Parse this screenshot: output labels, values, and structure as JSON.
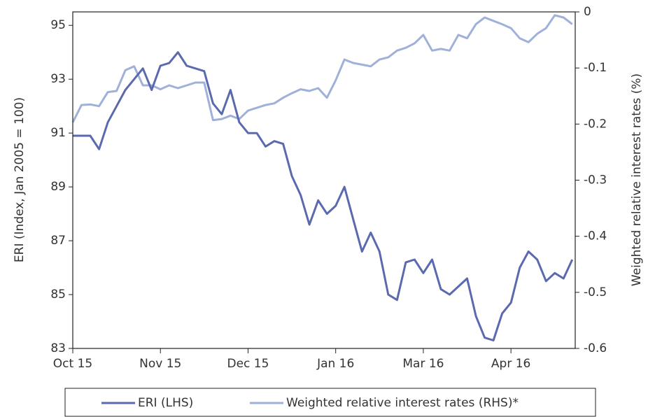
{
  "chart_data": {
    "type": "line",
    "x": [
      0,
      3,
      6,
      9,
      12,
      15,
      18,
      21,
      24,
      27,
      30,
      33,
      36,
      39,
      42,
      45,
      48,
      51,
      54,
      57,
      60,
      63,
      66,
      69,
      72,
      75,
      78,
      81,
      84,
      87,
      90,
      93,
      96,
      99,
      102,
      105,
      108,
      111,
      114,
      117,
      120,
      123,
      126,
      129,
      132,
      135,
      138,
      141,
      144,
      147,
      150,
      153,
      156,
      159,
      162,
      165,
      168,
      171
    ],
    "xlim": [
      0,
      172
    ],
    "xticks": [
      {
        "value": 0,
        "label": "Oct 15"
      },
      {
        "value": 30,
        "label": "Nov 15"
      },
      {
        "value": 60,
        "label": "Dec 15"
      },
      {
        "value": 90,
        "label": "Jan 16"
      },
      {
        "value": 120,
        "label": "Mar 16"
      },
      {
        "value": 150,
        "label": "Apr 16"
      }
    ],
    "ylim": [
      83,
      95.5
    ],
    "yticks": [
      83,
      85,
      87,
      89,
      91,
      93,
      95
    ],
    "y2lim": [
      -0.6,
      0
    ],
    "y2ticks": [
      -0.6,
      -0.5,
      -0.4,
      -0.3,
      -0.2,
      -0.1,
      0
    ],
    "ylabel": "ERI (Index, Jan 2005 = 100)",
    "y2label": "Weighted relative interest rates (%)",
    "series": [
      {
        "name": "ERI (LHS)",
        "color": "#5b6aae",
        "values": [
          90.9,
          90.9,
          90.9,
          90.4,
          91.4,
          92.0,
          92.6,
          93.0,
          93.4,
          92.6,
          93.5,
          93.6,
          94.0,
          93.5,
          93.4,
          93.3,
          92.1,
          91.7,
          92.6,
          91.4,
          91.0,
          91.0,
          90.5,
          90.7,
          90.6,
          89.4,
          88.7,
          87.6,
          88.5,
          88.0,
          88.3,
          89.0,
          87.8,
          86.6,
          87.3,
          86.6,
          85.0,
          84.8,
          86.2,
          86.3,
          85.8,
          86.3,
          85.2,
          85.0,
          85.3,
          85.6,
          84.2,
          83.4,
          83.3,
          84.3,
          84.7,
          86.0,
          86.6,
          86.3,
          85.5,
          85.8,
          85.6,
          86.3
        ]
      },
      {
        "name": "Weighted relative interest rates (RHS)*",
        "color": "#9fb1d9",
        "axis": "y2",
        "values": [
          -0.197,
          -0.166,
          -0.165,
          -0.168,
          -0.143,
          -0.141,
          -0.104,
          -0.097,
          -0.131,
          -0.131,
          -0.138,
          -0.131,
          -0.136,
          -0.131,
          -0.126,
          -0.126,
          -0.193,
          -0.191,
          -0.185,
          -0.191,
          -0.176,
          -0.171,
          -0.166,
          -0.163,
          -0.153,
          -0.145,
          -0.138,
          -0.141,
          -0.136,
          -0.153,
          -0.122,
          -0.085,
          -0.091,
          -0.094,
          -0.097,
          -0.085,
          -0.081,
          -0.069,
          -0.064,
          -0.056,
          -0.041,
          -0.069,
          -0.066,
          -0.069,
          -0.041,
          -0.047,
          -0.022,
          -0.01,
          -0.016,
          -0.022,
          -0.029,
          -0.047,
          -0.054,
          -0.039,
          -0.029,
          -0.006,
          -0.01,
          -0.022
        ]
      }
    ]
  }
}
